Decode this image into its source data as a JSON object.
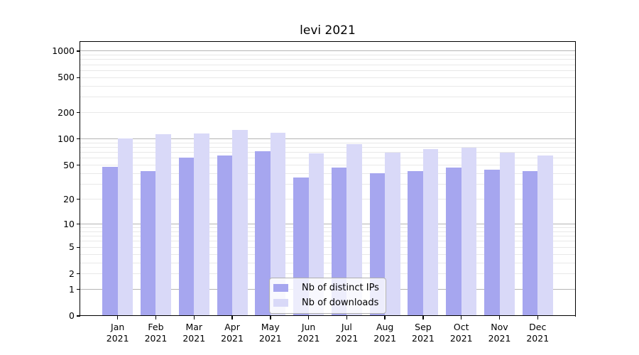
{
  "title": "levi 2021",
  "chart_data": {
    "type": "bar",
    "categories": [
      "Jan 2021",
      "Feb 2021",
      "Mar 2021",
      "Apr 2021",
      "May 2021",
      "Jun 2021",
      "Jul 2021",
      "Aug 2021",
      "Sep 2021",
      "Oct 2021",
      "Nov 2021",
      "Dec 2021"
    ],
    "series": [
      {
        "name": "Nb of distinct IPs",
        "color": "#a6a6ef",
        "values": [
          48,
          43,
          61,
          65,
          72,
          36,
          47,
          40,
          43,
          47,
          44,
          43
        ]
      },
      {
        "name": "Nb of downloads",
        "color": "#d9d9f8",
        "values": [
          102,
          113,
          115,
          128,
          118,
          68,
          87,
          70,
          76,
          79,
          70,
          65
        ]
      }
    ],
    "yscale": "log1p",
    "yticks": [
      0,
      1,
      2,
      5,
      10,
      20,
      50,
      100,
      200,
      500,
      1000
    ],
    "ylim": [
      0,
      1270
    ],
    "xlabel": "",
    "ylabel": "",
    "grid": true,
    "legend_position": "lower center",
    "colors": {
      "major_grid": "#b4b4b4",
      "minor_grid": "#e8e8e8",
      "spine": "#000000",
      "background": "#ffffff"
    }
  }
}
